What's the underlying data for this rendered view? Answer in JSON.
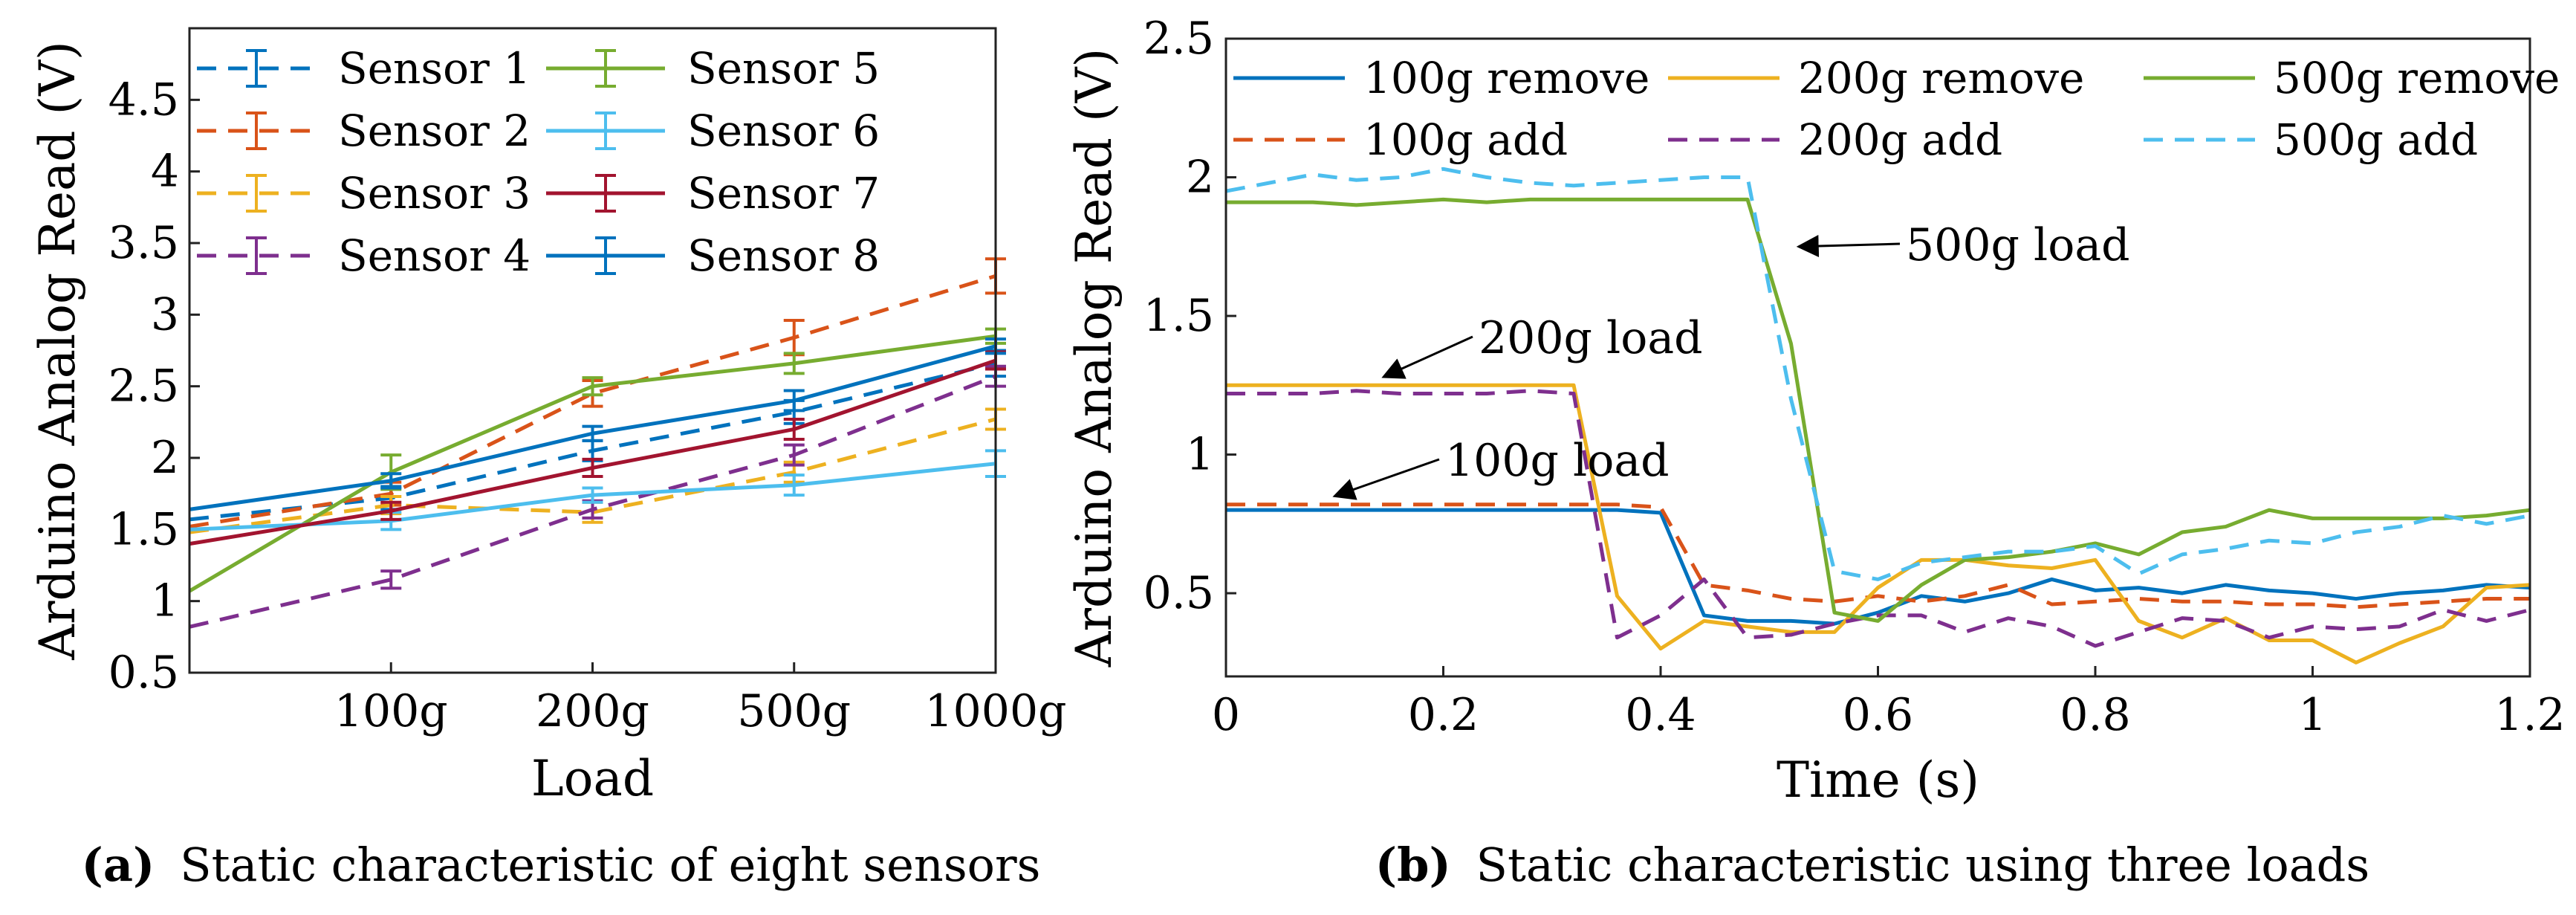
{
  "chart_data": [
    {
      "panel_id": "a",
      "type": "line",
      "caption_label": "(a)",
      "caption_text": "Static characteristic of eight sensors",
      "xlabel": "Load",
      "ylabel": "Arduino Analog Read (V)",
      "categories": [
        "100g",
        "200g",
        "500g",
        "1000g"
      ],
      "x": [
        0,
        1,
        2,
        3,
        4
      ],
      "xlim": [
        0,
        4
      ],
      "ylim": [
        0.5,
        5
      ],
      "yticks": [
        0.5,
        1,
        1.5,
        2,
        2.5,
        3,
        3.5,
        4,
        4.5
      ],
      "ytick_labels": [
        "0.5",
        "1",
        "1.5",
        "2",
        "2.5",
        "3",
        "3.5",
        "4",
        "4.5"
      ],
      "legend_position": "top",
      "series": [
        {
          "name": "Sensor 1",
          "color": "#0072BD",
          "dash": "dashed",
          "values": [
            1.57,
            1.72,
            2.05,
            2.32,
            2.66
          ],
          "err": [
            0,
            0.08,
            0.07,
            0.08,
            0.09
          ]
        },
        {
          "name": "Sensor 2",
          "color": "#D95319",
          "dash": "dashed",
          "values": [
            1.52,
            1.75,
            2.45,
            2.84,
            3.27
          ],
          "err": [
            0,
            0.08,
            0.09,
            0.12,
            0.12
          ]
        },
        {
          "name": "Sensor 3",
          "color": "#EDB120",
          "dash": "dashed",
          "values": [
            1.48,
            1.67,
            1.62,
            1.9,
            2.27
          ],
          "err": [
            0,
            0.06,
            0.07,
            0.07,
            0.07
          ]
        },
        {
          "name": "Sensor 4",
          "color": "#7E2F8E",
          "dash": "dashed",
          "values": [
            0.82,
            1.15,
            1.64,
            2.02,
            2.57
          ],
          "err": [
            0,
            0.06,
            0.06,
            0.07,
            0.07
          ]
        },
        {
          "name": "Sensor 5",
          "color": "#77AC30",
          "dash": "solid",
          "values": [
            1.07,
            1.9,
            2.5,
            2.66,
            2.85
          ],
          "err": [
            0,
            0.12,
            0.06,
            0.07,
            0.05
          ]
        },
        {
          "name": "Sensor 6",
          "color": "#4DBEEE",
          "dash": "solid",
          "values": [
            1.5,
            1.56,
            1.74,
            1.81,
            1.96
          ],
          "err": [
            0,
            0.06,
            0.05,
            0.07,
            0.09
          ]
        },
        {
          "name": "Sensor 7",
          "color": "#A2142F",
          "dash": "solid",
          "values": [
            1.4,
            1.63,
            1.93,
            2.2,
            2.68
          ],
          "err": [
            0,
            0.06,
            0.06,
            0.07,
            0.06
          ]
        },
        {
          "name": "Sensor 8",
          "color": "#0072BD",
          "dash": "solid",
          "values": [
            1.64,
            1.84,
            2.17,
            2.4,
            2.78
          ],
          "err": [
            0,
            0.05,
            0.05,
            0.07,
            0.05
          ]
        }
      ]
    },
    {
      "panel_id": "b",
      "type": "line",
      "caption_label": "(b)",
      "caption_text": "Static characteristic using three loads",
      "xlabel": "Time (s)",
      "ylabel": "Arduino Analog Read (V)",
      "xlim": [
        0,
        1.2
      ],
      "ylim": [
        0.2,
        2.5
      ],
      "xticks": [
        0,
        0.2,
        0.4,
        0.6,
        0.8,
        1,
        1.2
      ],
      "xtick_labels": [
        "0",
        "0.2",
        "0.4",
        "0.6",
        "0.8",
        "1",
        "1.2"
      ],
      "yticks": [
        0.5,
        1,
        1.5,
        2,
        2.5
      ],
      "ytick_labels": [
        "0.5",
        "1",
        "1.5",
        "2",
        "2.5"
      ],
      "legend_position": "top",
      "x": [
        0,
        0.04,
        0.08,
        0.12,
        0.16,
        0.2,
        0.24,
        0.28,
        0.32,
        0.36,
        0.4,
        0.44,
        0.48,
        0.52,
        0.56,
        0.6,
        0.64,
        0.68,
        0.72,
        0.76,
        0.8,
        0.84,
        0.88,
        0.92,
        0.96,
        1.0,
        1.04,
        1.08,
        1.12,
        1.16,
        1.2
      ],
      "series": [
        {
          "name": "100g remove",
          "color": "#0072BD",
          "dash": "solid",
          "values": [
            0.8,
            0.8,
            0.8,
            0.8,
            0.8,
            0.8,
            0.8,
            0.8,
            0.8,
            0.8,
            0.79,
            0.42,
            0.4,
            0.4,
            0.39,
            0.43,
            0.49,
            0.47,
            0.5,
            0.55,
            0.51,
            0.52,
            0.5,
            0.53,
            0.51,
            0.5,
            0.48,
            0.5,
            0.51,
            0.53,
            0.52
          ]
        },
        {
          "name": "100g add",
          "color": "#D95319",
          "dash": "dashed",
          "values": [
            0.82,
            0.82,
            0.82,
            0.82,
            0.82,
            0.82,
            0.82,
            0.82,
            0.82,
            0.82,
            0.81,
            0.53,
            0.51,
            0.48,
            0.47,
            0.49,
            0.47,
            0.49,
            0.53,
            0.46,
            0.47,
            0.48,
            0.47,
            0.47,
            0.46,
            0.46,
            0.45,
            0.46,
            0.47,
            0.48,
            0.48
          ]
        },
        {
          "name": "200g remove",
          "color": "#EDB120",
          "dash": "solid",
          "values": [
            1.25,
            1.25,
            1.25,
            1.25,
            1.25,
            1.25,
            1.25,
            1.25,
            1.25,
            0.49,
            0.3,
            0.4,
            0.38,
            0.36,
            0.36,
            0.52,
            0.62,
            0.62,
            0.6,
            0.59,
            0.62,
            0.4,
            0.34,
            0.41,
            0.33,
            0.33,
            0.25,
            0.32,
            0.38,
            0.52,
            0.53
          ]
        },
        {
          "name": "200g add",
          "color": "#7E2F8E",
          "dash": "dashed",
          "values": [
            1.22,
            1.22,
            1.22,
            1.23,
            1.22,
            1.22,
            1.22,
            1.23,
            1.22,
            0.34,
            0.42,
            0.55,
            0.34,
            0.35,
            0.39,
            0.42,
            0.42,
            0.36,
            0.41,
            0.38,
            0.31,
            0.36,
            0.41,
            0.4,
            0.34,
            0.38,
            0.37,
            0.38,
            0.44,
            0.4,
            0.44
          ]
        },
        {
          "name": "500g remove",
          "color": "#77AC30",
          "dash": "solid",
          "values": [
            1.91,
            1.91,
            1.91,
            1.9,
            1.91,
            1.92,
            1.91,
            1.92,
            1.92,
            1.92,
            1.92,
            1.92,
            1.92,
            1.4,
            0.43,
            0.4,
            0.53,
            0.62,
            0.63,
            0.65,
            0.68,
            0.64,
            0.72,
            0.74,
            0.8,
            0.77,
            0.77,
            0.77,
            0.77,
            0.78,
            0.8
          ]
        },
        {
          "name": "500g add",
          "color": "#4DBEEE",
          "dash": "dashed",
          "values": [
            1.95,
            1.98,
            2.01,
            1.99,
            2.0,
            2.03,
            2.0,
            1.98,
            1.97,
            1.98,
            1.99,
            2.0,
            2.0,
            1.2,
            0.58,
            0.55,
            0.61,
            0.63,
            0.65,
            0.65,
            0.67,
            0.57,
            0.64,
            0.66,
            0.69,
            0.68,
            0.72,
            0.74,
            0.78,
            0.75,
            0.78
          ]
        }
      ],
      "annotations": [
        {
          "text": "500g load",
          "x": 0.527,
          "y": 1.75
        },
        {
          "text": "200g load",
          "x": 0.145,
          "y": 1.28
        },
        {
          "text": "100g load",
          "x": 0.1,
          "y": 0.85
        }
      ]
    }
  ]
}
